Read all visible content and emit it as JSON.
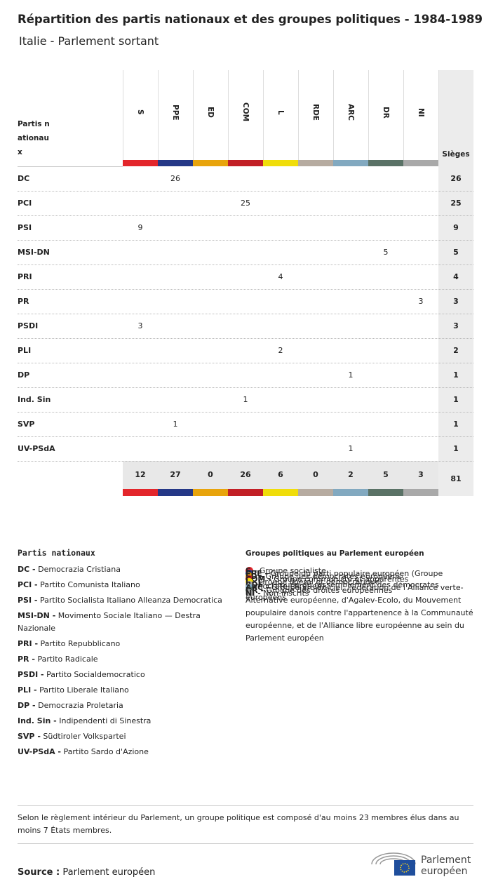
{
  "header": {
    "title": "Répartition des partis nationaux et des groupes politiques - 1984-1989",
    "subtitle": "Italie - Parlement sortant"
  },
  "table": {
    "corner": "Partis nationaux",
    "seats_label": "Sièges",
    "columns": [
      {
        "label": "S",
        "color": "#e3262b"
      },
      {
        "label": "PPE",
        "color": "#253887"
      },
      {
        "label": "ED",
        "color": "#e8a40c"
      },
      {
        "label": "COM",
        "color": "#c21f26"
      },
      {
        "label": "L",
        "color": "#f0dd0a"
      },
      {
        "label": "RDE",
        "color": "#b6aba0"
      },
      {
        "label": "ARC",
        "color": "#82a9c0"
      },
      {
        "label": "DR",
        "color": "#5a7266"
      },
      {
        "label": "NI",
        "color": "#a9a9a9"
      }
    ],
    "rows": [
      {
        "party": "DC",
        "cells": [
          null,
          26,
          null,
          null,
          null,
          null,
          null,
          null,
          null
        ],
        "total": 26
      },
      {
        "party": "PCI",
        "cells": [
          null,
          null,
          null,
          25,
          null,
          null,
          null,
          null,
          null
        ],
        "total": 25
      },
      {
        "party": "PSI",
        "cells": [
          9,
          null,
          null,
          null,
          null,
          null,
          null,
          null,
          null
        ],
        "total": 9
      },
      {
        "party": "MSI-DN",
        "cells": [
          null,
          null,
          null,
          null,
          null,
          null,
          null,
          5,
          null
        ],
        "total": 5
      },
      {
        "party": "PRI",
        "cells": [
          null,
          null,
          null,
          null,
          4,
          null,
          null,
          null,
          null
        ],
        "total": 4
      },
      {
        "party": "PR",
        "cells": [
          null,
          null,
          null,
          null,
          null,
          null,
          null,
          null,
          3
        ],
        "total": 3
      },
      {
        "party": "PSDI",
        "cells": [
          3,
          null,
          null,
          null,
          null,
          null,
          null,
          null,
          null
        ],
        "total": 3
      },
      {
        "party": "PLI",
        "cells": [
          null,
          null,
          null,
          null,
          2,
          null,
          null,
          null,
          null
        ],
        "total": 2
      },
      {
        "party": "DP",
        "cells": [
          null,
          null,
          null,
          null,
          null,
          null,
          1,
          null,
          null
        ],
        "total": 1
      },
      {
        "party": "Ind. Sin",
        "cells": [
          null,
          null,
          null,
          1,
          null,
          null,
          null,
          null,
          null
        ],
        "total": 1
      },
      {
        "party": "SVP",
        "cells": [
          null,
          1,
          null,
          null,
          null,
          null,
          null,
          null,
          null
        ],
        "total": 1
      },
      {
        "party": "UV-PSdA",
        "cells": [
          null,
          null,
          null,
          null,
          null,
          null,
          1,
          null,
          null
        ],
        "total": 1
      }
    ],
    "totals": [
      12,
      27,
      0,
      26,
      6,
      0,
      2,
      5,
      3
    ],
    "grand_total": 81
  },
  "legend_parties": {
    "title": "Partis nationaux",
    "items": [
      {
        "key": "DC -",
        "name": "Democrazia Cristiana"
      },
      {
        "key": "PCI -",
        "name": "Partito Comunista Italiano"
      },
      {
        "key": "PSI -",
        "name": "Partito Socialista Italiano Alleanza Democratica"
      },
      {
        "key": "MSI-DN -",
        "name": "Movimento Sociale Italiano — Destra Nazionale"
      },
      {
        "key": "PRI -",
        "name": "Partito Repubblicano"
      },
      {
        "key": "PR -",
        "name": "Partito Radicale"
      },
      {
        "key": "PSDI -",
        "name": "Partito Socialdemocratico"
      },
      {
        "key": "PLI -",
        "name": "Partito Liberale Italiano"
      },
      {
        "key": "DP -",
        "name": "Democrazia Proletaria"
      },
      {
        "key": "Ind. Sin -",
        "name": "Indipendenti di Sinestra"
      },
      {
        "key": "SVP -",
        "name": "Südtiroler Volkspartei"
      },
      {
        "key": "UV-PSdA -",
        "name": "Partito Sardo d'Azione"
      }
    ]
  },
  "legend_groups": {
    "title": "Groupes politiques au Parlement européen",
    "items": [
      {
        "key": "S -",
        "name": "Groupe socialiste",
        "color": "#e3262b"
      },
      {
        "key": "PPE -",
        "name": "Groupe du parti populaire européen (Groupe démocrate-chrétien)",
        "color": "#253887"
      },
      {
        "key": "ED -",
        "name": "Groupe des démocrates européens",
        "color": "#e8a40c"
      },
      {
        "key": "COM -",
        "name": "Groupe communiste et apparentés",
        "color": "#c21f26"
      },
      {
        "key": "L -",
        "name": "Groupe libéral et démocratique",
        "color": "#f0dd0a"
      },
      {
        "key": "RDE -",
        "name": "Groupe du rassemblement des démocrates européens",
        "color": "#b6aba0"
      },
      {
        "key": "ARC -",
        "name": "Groupe arc-en-ciel: Fédération de l'Alliance verte-Alternative européenne, d'Agalev-Ecolo, du Mouvement poupulaire danois contre l'appartenence à la Communauté européenne, et de l'Alliance libre européenne au sein du Parlement européen",
        "color": "#82a9c0"
      },
      {
        "key": "DR -",
        "name": "Groupe des droites européennes",
        "color": "#5a7266"
      },
      {
        "key": "NI -",
        "name": "Non-inscrits",
        "color": "#a9a9a9"
      }
    ]
  },
  "footnote": "Selon le règlement intérieur du Parlement, un groupe politique est composé d'au moins 23 membres élus dans au moins 7 États membres.",
  "source": {
    "label": "Source :",
    "text": "Parlement européen"
  },
  "logo": {
    "line1": "Parlement",
    "line2": "européen"
  }
}
